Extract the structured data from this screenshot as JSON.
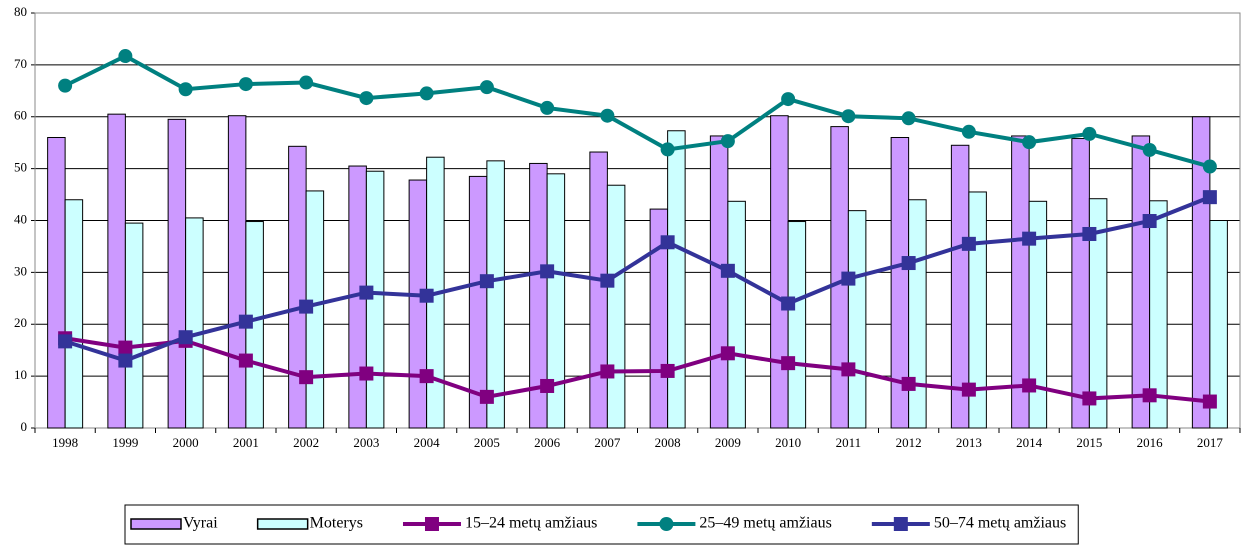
{
  "chart_data": {
    "type": "bar",
    "categories": [
      "1998",
      "1999",
      "2000",
      "2001",
      "2002",
      "2003",
      "2004",
      "2005",
      "2006",
      "2007",
      "2008",
      "2009",
      "2010",
      "2011",
      "2012",
      "2013",
      "2014",
      "2015",
      "2016",
      "2017"
    ],
    "ylim": [
      0,
      80
    ],
    "yticks": [
      0,
      10,
      20,
      30,
      40,
      50,
      60,
      70,
      80
    ],
    "grid": true,
    "legend": "bottom",
    "series": [
      {
        "name": "Vyrai",
        "type": "bar",
        "color": "#cc99ff",
        "values": [
          56,
          60.5,
          59.5,
          60.2,
          54.3,
          50.5,
          47.8,
          48.5,
          51,
          53.2,
          42.2,
          56.3,
          60.2,
          58.1,
          56,
          54.5,
          56.3,
          55.8,
          56.3,
          60
        ]
      },
      {
        "name": "Moterys",
        "type": "bar",
        "color": "#ccffff",
        "values": [
          44,
          39.5,
          40.5,
          39.8,
          45.7,
          49.5,
          52.2,
          51.5,
          49,
          46.8,
          57.3,
          43.7,
          39.8,
          41.9,
          44,
          45.5,
          43.7,
          44.2,
          43.8,
          40
        ]
      },
      {
        "name": "15–24 metų amžiaus",
        "type": "line",
        "marker": "square",
        "color": "#800080",
        "values": [
          17.3,
          15.5,
          16.8,
          13,
          9.8,
          10.5,
          10,
          6,
          8.1,
          10.9,
          11,
          14.4,
          12.5,
          11.3,
          8.5,
          7.4,
          8.2,
          5.7,
          6.3,
          5.1
        ]
      },
      {
        "name": "25–49 metų amžiaus",
        "type": "line",
        "marker": "circle",
        "color": "#008080",
        "values": [
          66,
          71.7,
          65.3,
          66.3,
          66.6,
          63.6,
          64.5,
          65.7,
          61.7,
          60.2,
          53.7,
          55.3,
          63.4,
          60.1,
          59.7,
          57.1,
          55.1,
          56.7,
          53.6,
          50.4
        ]
      },
      {
        "name": "50–74 metų amžiaus",
        "type": "line",
        "marker": "square",
        "color": "#333399",
        "values": [
          16.7,
          13,
          17.5,
          20.5,
          23.4,
          26.1,
          25.5,
          28.3,
          30.2,
          28.4,
          35.8,
          30.3,
          24,
          28.8,
          31.8,
          35.5,
          36.5,
          37.4,
          39.9,
          44.5
        ]
      }
    ]
  }
}
